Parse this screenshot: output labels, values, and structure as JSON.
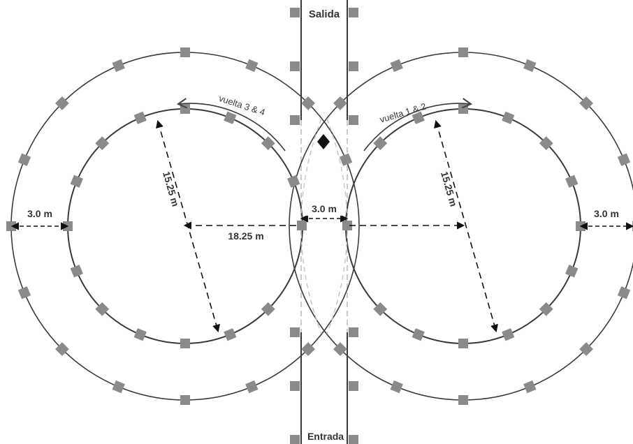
{
  "colors": {
    "line": "#3a3a3a",
    "dashed": "#b8b8b8",
    "cone": "#8a8a8a",
    "marker": "#111111"
  },
  "labels": {
    "exit": "Salida",
    "entry": "Entrada",
    "lap_left": "vuelta 3 & 4",
    "lap_right": "vuelta 1 & 2",
    "radius_left": "15.25 m",
    "radius_right": "15.25 m",
    "center_distance": "18.25 m",
    "lane_width_left": "3.0 m",
    "lane_width_center": "3.0 m",
    "lane_width_right": "3.0 m"
  },
  "icons": {
    "cone": "square-cone-marker",
    "start_marker": "diamond-marker",
    "arrow": "curved-arrow"
  }
}
